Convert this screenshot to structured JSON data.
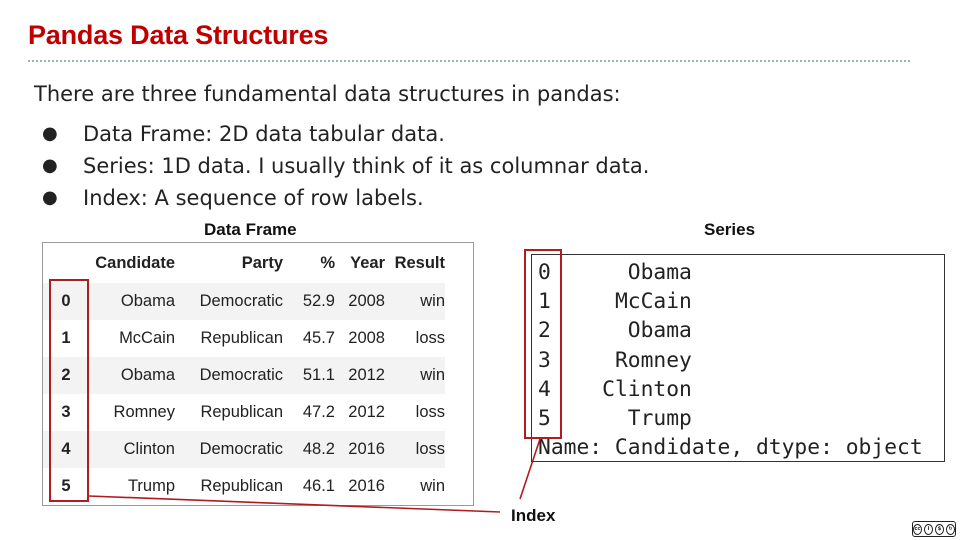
{
  "title": "Pandas Data Structures",
  "intro": "There are three fundamental data structures in pandas:",
  "bullets": [
    "Data Frame: 2D data tabular data.",
    "Series: 1D data. I usually think of it as columnar data.",
    "Index: A sequence of row labels."
  ],
  "bullet_glyph": "●",
  "dataframe": {
    "caption": "Data Frame",
    "columns": [
      "Candidate",
      "Party",
      "%",
      "Year",
      "Result"
    ],
    "index": [
      "0",
      "1",
      "2",
      "3",
      "4",
      "5"
    ],
    "rows": [
      [
        "Obama",
        "Democratic",
        "52.9",
        "2008",
        "win"
      ],
      [
        "McCain",
        "Republican",
        "45.7",
        "2008",
        "loss"
      ],
      [
        "Obama",
        "Democratic",
        "51.1",
        "2012",
        "win"
      ],
      [
        "Romney",
        "Republican",
        "47.2",
        "2012",
        "loss"
      ],
      [
        "Clinton",
        "Democratic",
        "48.2",
        "2016",
        "loss"
      ],
      [
        "Trump",
        "Republican",
        "46.1",
        "2016",
        "win"
      ]
    ]
  },
  "series": {
    "caption": "Series",
    "index": [
      "0",
      "1",
      "2",
      "3",
      "4",
      "5"
    ],
    "values": [
      "Obama",
      "McCain",
      "Obama",
      "Romney",
      "Clinton",
      "Trump"
    ],
    "footer": "Name: Candidate, dtype: object"
  },
  "index_label": "Index",
  "colors": {
    "title": "#c00000",
    "highlight": "#b01c22",
    "rule": "#8fb7c4"
  },
  "license_icon": "cc-by-nc-sa-icon"
}
